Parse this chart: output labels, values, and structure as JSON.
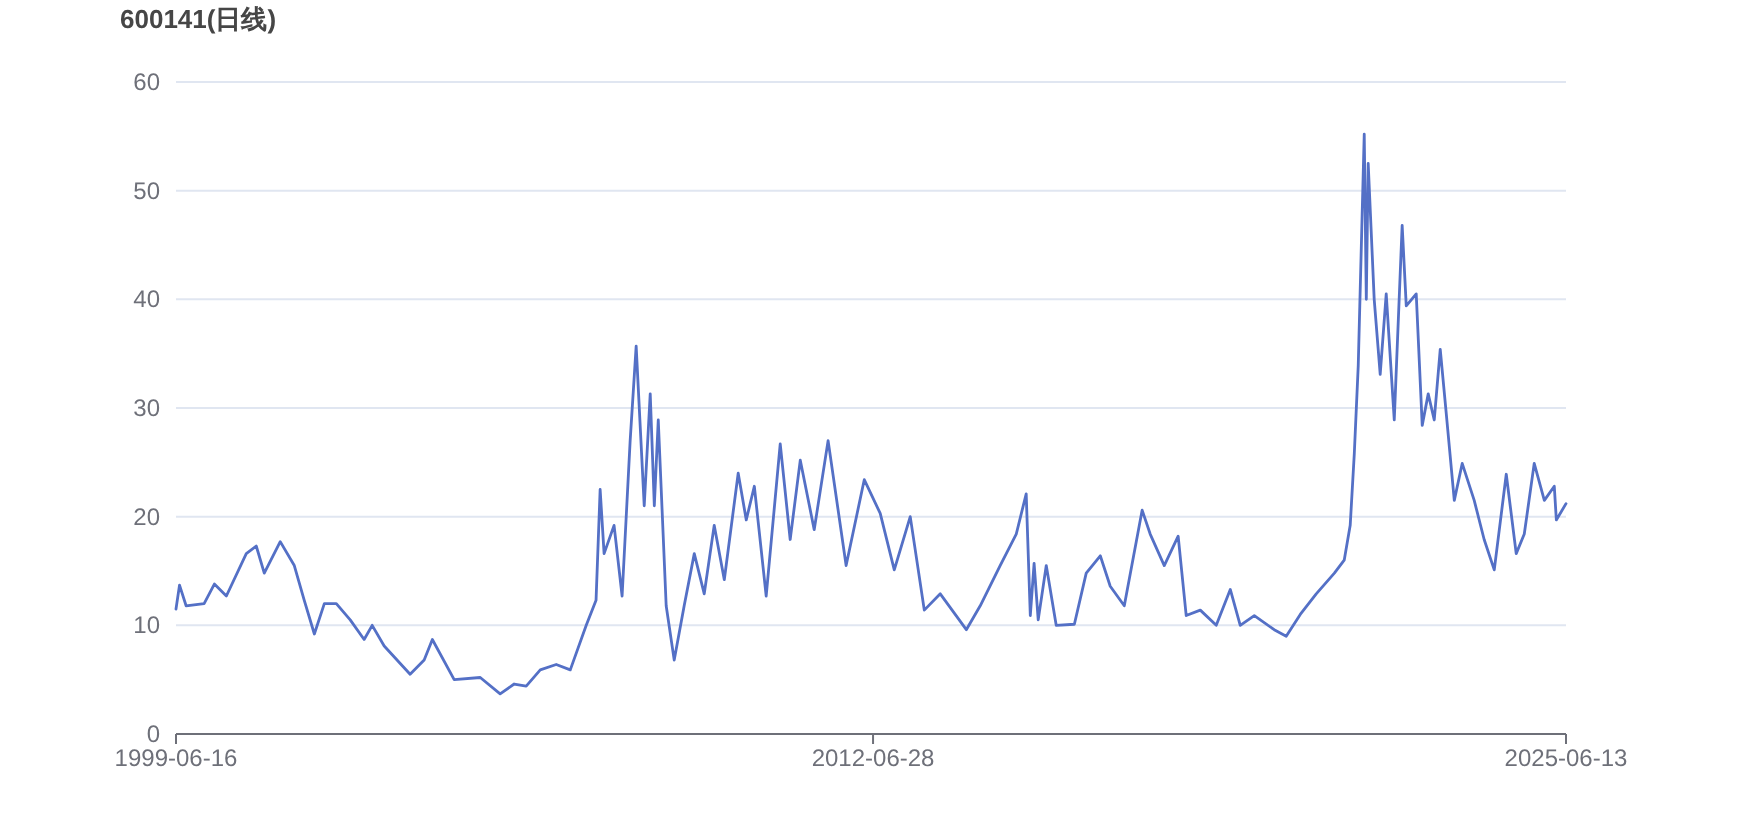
{
  "chart_data": {
    "type": "line",
    "title": "600141(日线)",
    "grid": "y",
    "marker": "none",
    "line_style": "solid",
    "xlim": [
      "1999-06-16",
      "2025-06-13"
    ],
    "xticks": [
      "1999-06-16",
      "2012-06-28",
      "2025-06-13"
    ],
    "ylim": [
      0,
      60
    ],
    "yticks": [
      0,
      10,
      20,
      30,
      40,
      50,
      60
    ],
    "series": [
      {
        "color": "#5470c6",
        "x": [
          "1999-06-16",
          "1999-07-10",
          "1999-08-24",
          "1999-12-25",
          "2000-03-04",
          "2000-05-25",
          "2000-10-08",
          "2000-12-15",
          "2001-02-08",
          "2001-05-28",
          "2001-09-01",
          "2001-11-08",
          "2002-01-16",
          "2002-03-25",
          "2002-06-15",
          "2002-09-18",
          "2002-12-22",
          "2003-02-15",
          "2003-05-08",
          "2003-11-01",
          "2004-02-05",
          "2004-04-01",
          "2004-08-28",
          "2005-02-22",
          "2005-07-08",
          "2005-10-12",
          "2006-01-02",
          "2006-04-08",
          "2006-07-26",
          "2006-10-30",
          "2007-02-16",
          "2007-04-24",
          "2007-05-22",
          "2007-06-18",
          "2007-08-25",
          "2007-10-19",
          "2007-12-13",
          "2008-01-23",
          "2008-03-18",
          "2008-04-28",
          "2008-05-26",
          "2008-06-22",
          "2008-08-15",
          "2008-10-09",
          "2008-12-16",
          "2009-02-23",
          "2009-05-02",
          "2009-07-09",
          "2009-09-16",
          "2009-12-20",
          "2010-02-13",
          "2010-04-09",
          "2010-06-29",
          "2010-10-03",
          "2010-12-10",
          "2011-02-17",
          "2011-05-23",
          "2011-08-26",
          "2011-12-27",
          "2012-04-29",
          "2012-08-16",
          "2012-11-20",
          "2013-03-09",
          "2013-06-13",
          "2013-09-30",
          "2014-03-27",
          "2014-06-30",
          "2014-11-13",
          "2015-03-03",
          "2015-05-10",
          "2015-06-07",
          "2015-07-03",
          "2015-07-31",
          "2015-09-24",
          "2015-12-01",
          "2016-04-03",
          "2016-06-23",
          "2016-09-27",
          "2016-12-04",
          "2017-03-10",
          "2017-07-10",
          "2017-09-03",
          "2017-12-08",
          "2018-03-13",
          "2018-05-07",
          "2018-08-11",
          "2018-11-28",
          "2019-03-04",
          "2019-05-11",
          "2019-08-15",
          "2019-12-29",
          "2020-03-20",
          "2020-06-24",
          "2020-10-11",
          "2021-02-12",
          "2021-04-20",
          "2021-05-31",
          "2021-06-28",
          "2021-07-25",
          "2021-09-04",
          "2021-09-18",
          "2021-10-01",
          "2021-11-11",
          "2021-12-22",
          "2022-02-01",
          "2022-03-28",
          "2022-05-21",
          "2022-06-18",
          "2022-08-25",
          "2022-10-05",
          "2022-11-15",
          "2022-12-26",
          "2023-02-05",
          "2023-03-18",
          "2023-05-12",
          "2023-07-05",
          "2023-09-25",
          "2023-12-02",
          "2024-02-09",
          "2024-05-01",
          "2024-07-08",
          "2024-09-01",
          "2024-11-08",
          "2025-01-16",
          "2025-03-25",
          "2025-04-08",
          "2025-06-13"
        ],
        "values": [
          11.5,
          13.7,
          11.8,
          12,
          13.8,
          12.7,
          16.6,
          17.3,
          14.8,
          17.7,
          15.5,
          12.3,
          9.2,
          12,
          12,
          10.5,
          8.7,
          10,
          8.1,
          5.5,
          6.8,
          8.7,
          5,
          5.2,
          3.7,
          4.6,
          4.4,
          5.9,
          6.4,
          5.9,
          10,
          12.3,
          22.5,
          16.6,
          19.2,
          12.7,
          27,
          35.7,
          21,
          31.3,
          21,
          28.9,
          11.8,
          6.8,
          11.8,
          16.6,
          12.9,
          19.2,
          14.2,
          24,
          19.7,
          22.8,
          12.7,
          26.7,
          17.9,
          25.2,
          18.8,
          27,
          15.5,
          23.4,
          20.3,
          15.1,
          20,
          11.4,
          12.9,
          9.6,
          11.8,
          15.5,
          18.4,
          22.1,
          10.9,
          15.7,
          10.5,
          15.5,
          10,
          10.1,
          14.8,
          16.4,
          13.6,
          11.8,
          20.6,
          18.4,
          15.5,
          18.2,
          10.9,
          11.4,
          10,
          13.3,
          10,
          10.9,
          9.6,
          9,
          11,
          12.9,
          14.8,
          16,
          19.2,
          25.8,
          33.9,
          55.2,
          40,
          52.5,
          40,
          33.1,
          40.5,
          28.9,
          46.8,
          39.4,
          40.5,
          28.4,
          31.3,
          28.9,
          35.4,
          29.5,
          21.5,
          24.9,
          21.5,
          17.9,
          15.1,
          23.9,
          16.6,
          18.4,
          24.9,
          21.5,
          22.8,
          19.7,
          21.2
        ]
      }
    ]
  }
}
